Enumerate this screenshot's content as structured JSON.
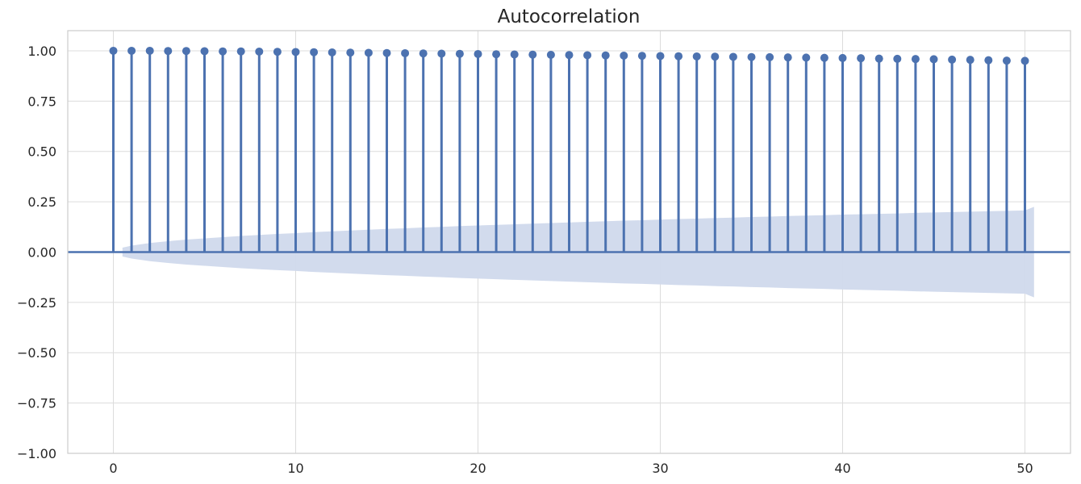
{
  "chart_data": {
    "type": "stem",
    "title": "Autocorrelation",
    "xlabel": "",
    "ylabel": "",
    "xlim": [
      -2.5,
      52.5
    ],
    "ylim": [
      -1.0,
      1.1
    ],
    "x_ticks": [
      0,
      10,
      20,
      30,
      40,
      50
    ],
    "x_tick_labels": [
      "0",
      "10",
      "20",
      "30",
      "40",
      "50"
    ],
    "y_ticks": [
      1.0,
      0.75,
      0.5,
      0.25,
      0.0,
      -0.25,
      -0.5,
      -0.75,
      -1.0
    ],
    "y_tick_labels": [
      "1.00",
      "0.75",
      "0.50",
      "0.25",
      "0.00",
      "−0.25",
      "−0.50",
      "−0.75",
      "−1.00"
    ],
    "grid": true,
    "lags": [
      0,
      1,
      2,
      3,
      4,
      5,
      6,
      7,
      8,
      9,
      10,
      11,
      12,
      13,
      14,
      15,
      16,
      17,
      18,
      19,
      20,
      21,
      22,
      23,
      24,
      25,
      26,
      27,
      28,
      29,
      30,
      31,
      32,
      33,
      34,
      35,
      36,
      37,
      38,
      39,
      40,
      41,
      42,
      43,
      44,
      45,
      46,
      47,
      48,
      49,
      50
    ],
    "acf": [
      1.0,
      1.0,
      1.0,
      0.999,
      0.999,
      0.998,
      0.997,
      0.997,
      0.996,
      0.995,
      0.994,
      0.993,
      0.992,
      0.991,
      0.99,
      0.989,
      0.988,
      0.987,
      0.986,
      0.985,
      0.984,
      0.983,
      0.982,
      0.981,
      0.98,
      0.979,
      0.978,
      0.977,
      0.976,
      0.975,
      0.974,
      0.973,
      0.972,
      0.971,
      0.97,
      0.969,
      0.968,
      0.967,
      0.966,
      0.965,
      0.964,
      0.963,
      0.961,
      0.96,
      0.959,
      0.958,
      0.956,
      0.955,
      0.953,
      0.951,
      0.95
    ],
    "confidence_band": {
      "x": [
        0.5,
        1,
        2,
        3,
        4,
        5,
        6,
        7,
        8,
        9,
        10,
        11,
        12,
        13,
        14,
        15,
        16,
        17,
        18,
        19,
        20,
        21,
        22,
        23,
        24,
        25,
        26,
        27,
        28,
        29,
        30,
        31,
        32,
        33,
        34,
        35,
        36,
        37,
        38,
        39,
        40,
        41,
        42,
        43,
        44,
        45,
        46,
        47,
        48,
        49,
        50,
        50.5
      ],
      "upper": [
        0.022,
        0.032,
        0.045,
        0.054,
        0.062,
        0.068,
        0.074,
        0.08,
        0.085,
        0.09,
        0.094,
        0.099,
        0.103,
        0.107,
        0.111,
        0.115,
        0.118,
        0.122,
        0.125,
        0.129,
        0.132,
        0.135,
        0.138,
        0.141,
        0.144,
        0.147,
        0.15,
        0.153,
        0.156,
        0.158,
        0.161,
        0.164,
        0.166,
        0.169,
        0.171,
        0.174,
        0.176,
        0.179,
        0.181,
        0.183,
        0.186,
        0.188,
        0.19,
        0.192,
        0.195,
        0.197,
        0.199,
        0.201,
        0.203,
        0.205,
        0.207,
        0.225
      ]
    },
    "colors": {
      "stem": "#4c72b0",
      "band": "#d0d9ec",
      "zero_line": "#4c72b0"
    }
  }
}
